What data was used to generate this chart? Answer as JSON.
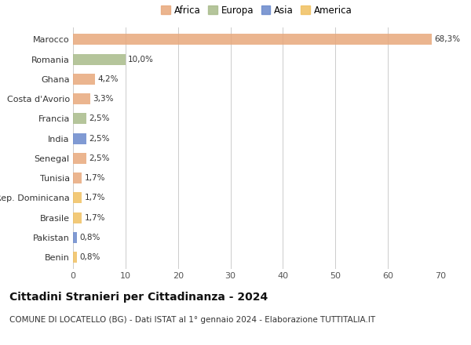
{
  "countries": [
    "Marocco",
    "Romania",
    "Ghana",
    "Costa d'Avorio",
    "Francia",
    "India",
    "Senegal",
    "Tunisia",
    "Rep. Dominicana",
    "Brasile",
    "Pakistan",
    "Benin"
  ],
  "values": [
    68.3,
    10.0,
    4.2,
    3.3,
    2.5,
    2.5,
    2.5,
    1.7,
    1.7,
    1.7,
    0.8,
    0.8
  ],
  "labels": [
    "68,3%",
    "10,0%",
    "4,2%",
    "3,3%",
    "2,5%",
    "2,5%",
    "2,5%",
    "1,7%",
    "1,7%",
    "1,7%",
    "0,8%",
    "0,8%"
  ],
  "colors": [
    "#E8A87C",
    "#A8BB8A",
    "#E8A87C",
    "#E8A87C",
    "#A8BB8A",
    "#6A89CC",
    "#E8A87C",
    "#E8A87C",
    "#F0C060",
    "#F0C060",
    "#6A89CC",
    "#F0C060"
  ],
  "continent_labels": [
    "Africa",
    "Europa",
    "Asia",
    "America"
  ],
  "continent_colors": [
    "#E8A87C",
    "#A8BB8A",
    "#6A89CC",
    "#F0C060"
  ],
  "title": "Cittadini Stranieri per Cittadinanza - 2024",
  "subtitle": "COMUNE DI LOCATELLO (BG) - Dati ISTAT al 1° gennaio 2024 - Elaborazione TUTTITALIA.IT",
  "xlim": [
    0,
    70
  ],
  "xticks": [
    0,
    10,
    20,
    30,
    40,
    50,
    60,
    70
  ],
  "background_color": "#ffffff",
  "bar_height": 0.55,
  "title_fontsize": 10,
  "subtitle_fontsize": 7.5,
  "label_fontsize": 7.5,
  "tick_fontsize": 8,
  "legend_fontsize": 8.5
}
